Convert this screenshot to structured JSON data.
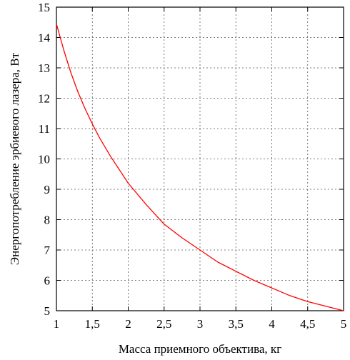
{
  "chart_data": {
    "type": "line",
    "xlabel": "Масса приемного объектива, кг",
    "ylabel": "Энергопотребление эрбиевого лазера, Вт",
    "xlim": [
      1,
      5
    ],
    "ylim": [
      5,
      15
    ],
    "grid": true,
    "x_ticks": [
      "1",
      "1,5",
      "2",
      "2,5",
      "3",
      "3,5",
      "4",
      "4,5",
      "5"
    ],
    "y_ticks": [
      "5",
      "6",
      "7",
      "8",
      "9",
      "10",
      "11",
      "12",
      "13",
      "14",
      "15"
    ],
    "series": [
      {
        "color": "#ff0000",
        "x": [
          1.0,
          1.1,
          1.2,
          1.3,
          1.4,
          1.5,
          1.6,
          1.75,
          2.0,
          2.25,
          2.5,
          2.75,
          3.0,
          3.25,
          3.5,
          3.75,
          4.0,
          4.25,
          4.5,
          4.75,
          5.0
        ],
        "y": [
          14.45,
          13.6,
          12.85,
          12.2,
          11.65,
          11.15,
          10.7,
          10.1,
          9.2,
          8.5,
          7.85,
          7.4,
          7.0,
          6.6,
          6.3,
          6.0,
          5.75,
          5.5,
          5.3,
          5.15,
          5.0
        ]
      }
    ]
  }
}
